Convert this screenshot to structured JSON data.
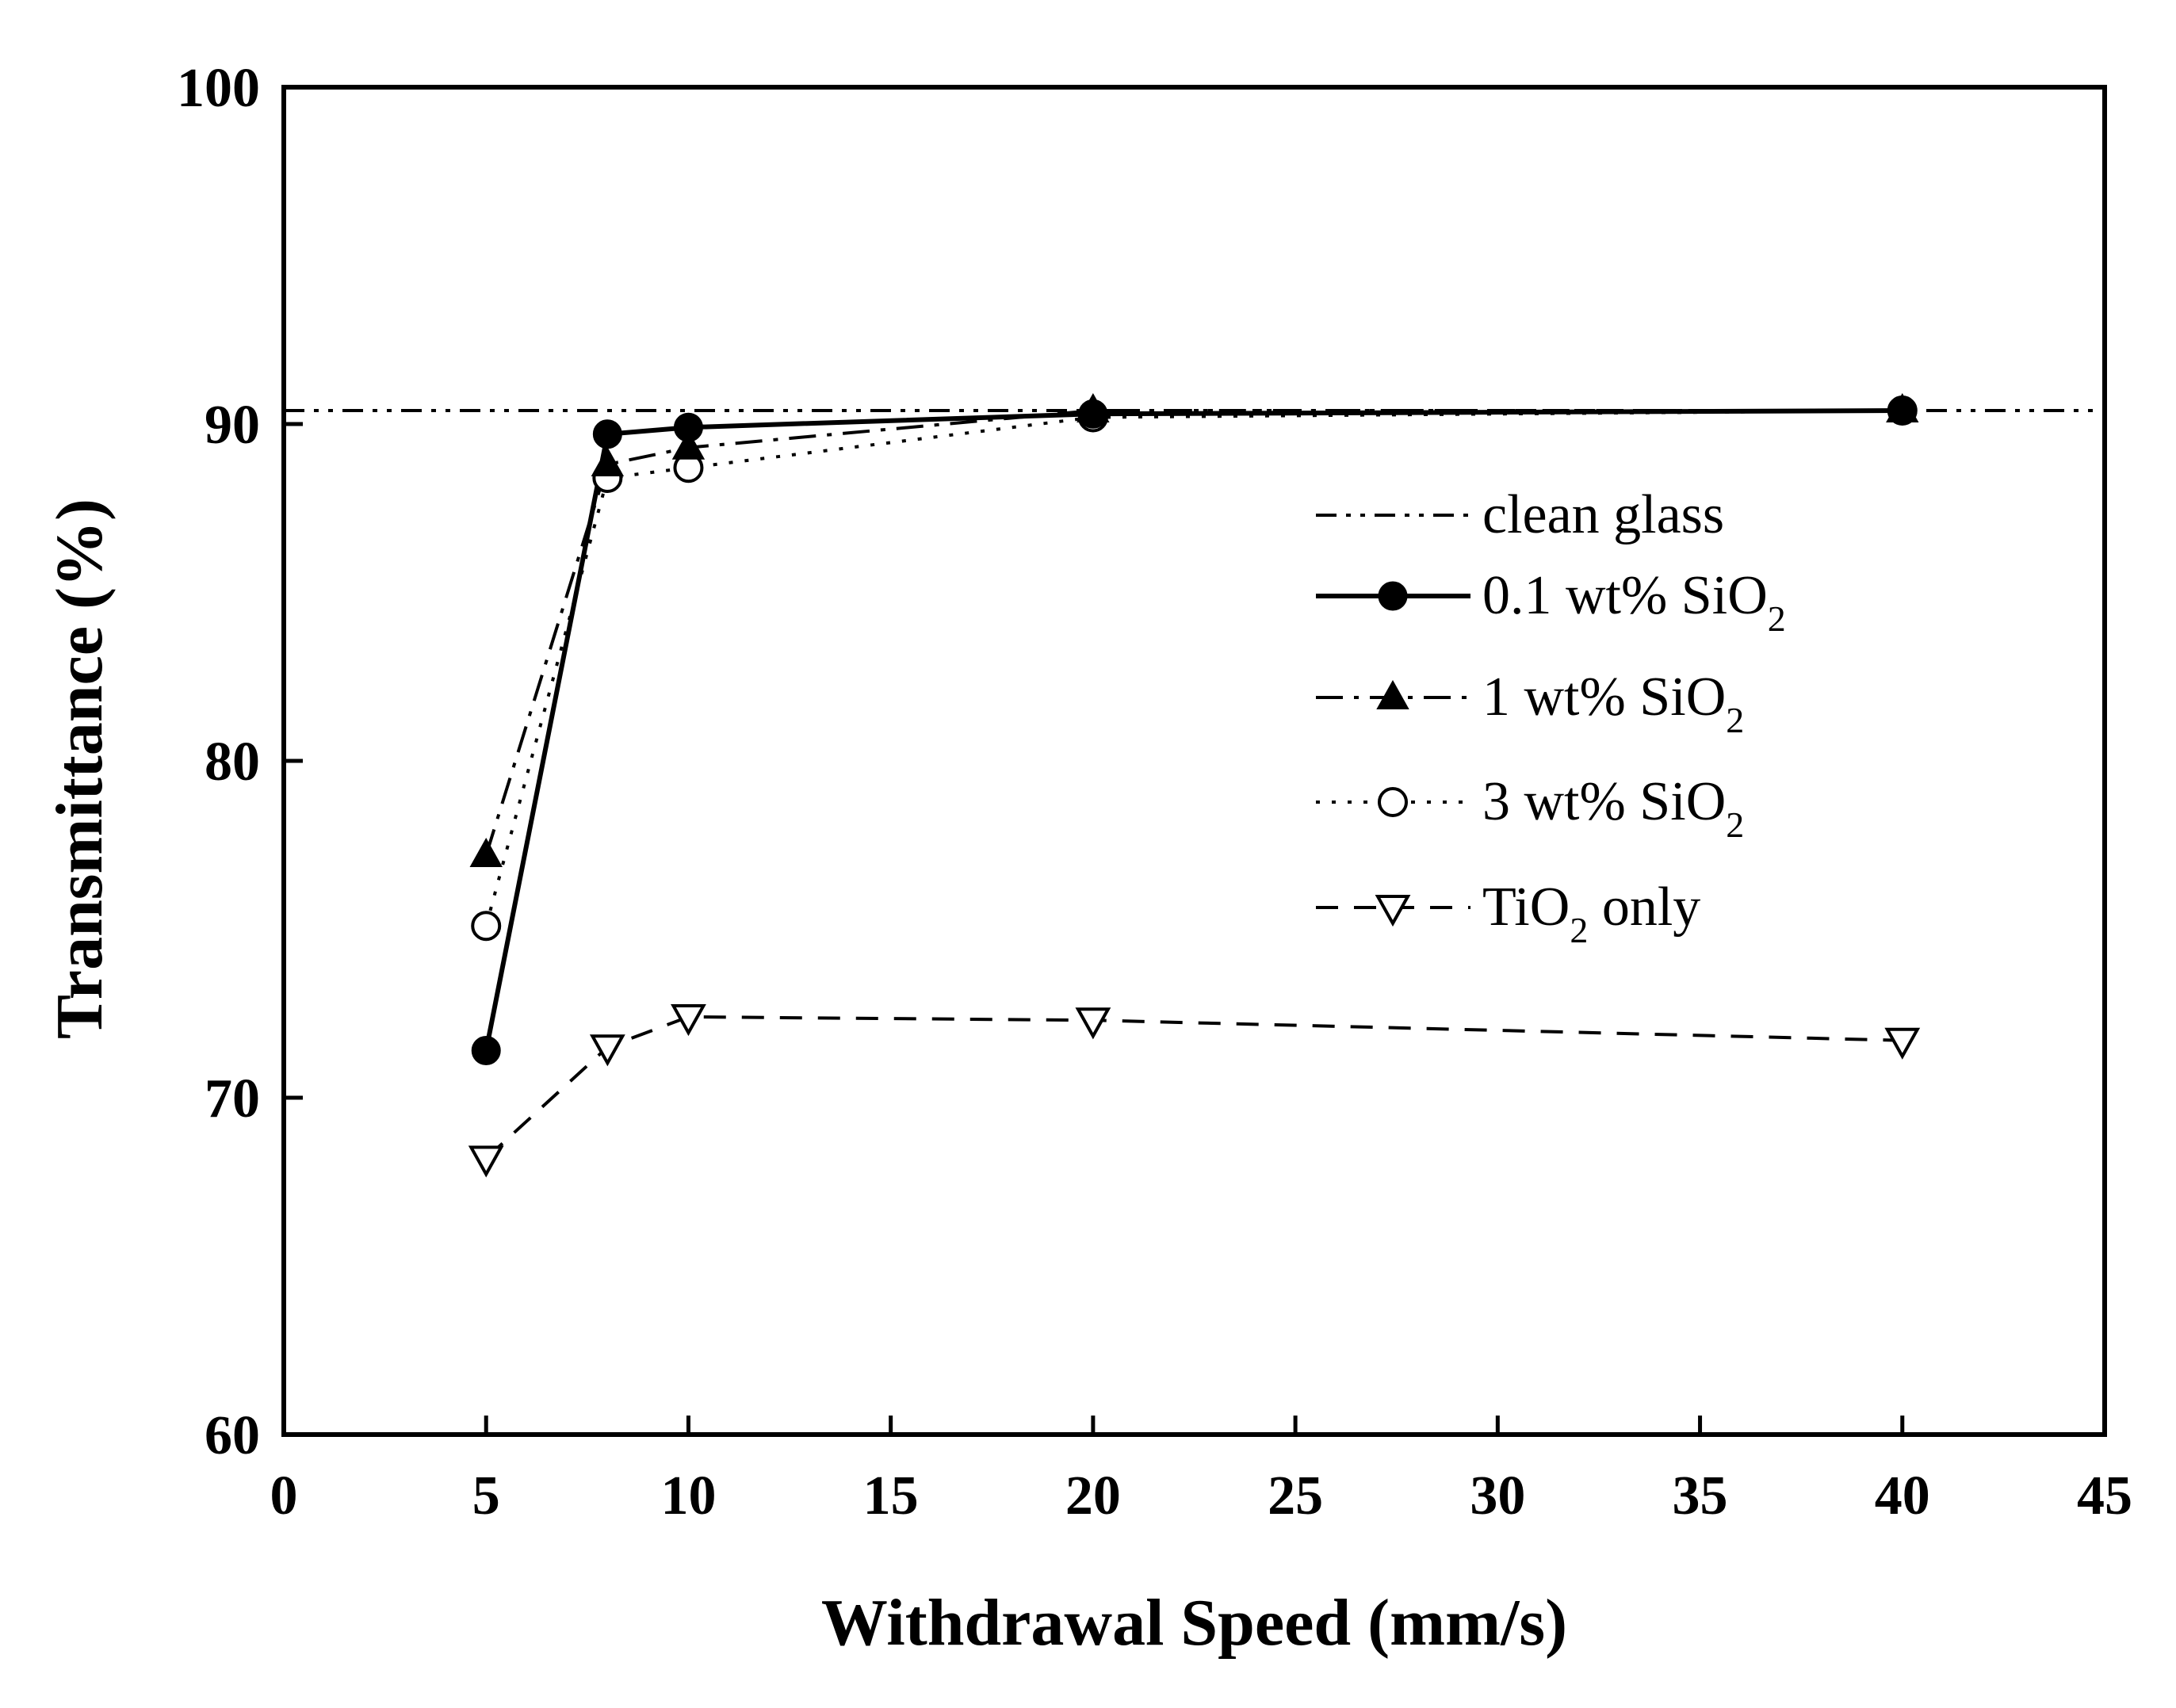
{
  "chart_data": {
    "type": "line",
    "title": "",
    "xlabel": "Withdrawal Speed (mm/s)",
    "ylabel": "Transmittance (%)",
    "xlim": [
      0,
      45
    ],
    "ylim": [
      60,
      100
    ],
    "xticks": [
      0,
      5,
      10,
      15,
      20,
      25,
      30,
      35,
      40,
      45
    ],
    "yticks": [
      60,
      70,
      80,
      90,
      100
    ],
    "xtick_labels": [
      "0",
      "5",
      "10",
      "15",
      "20",
      "25",
      "30",
      "35",
      "40",
      "45"
    ],
    "ytick_labels": [
      "60",
      "70",
      "80",
      "90",
      "100"
    ],
    "grid": false,
    "legend_position": "right",
    "reference_line": {
      "name": "clean glass",
      "y": 90.4,
      "style": "dash-dot-dot"
    },
    "series": [
      {
        "name": "0.1 wt% SiO2",
        "label_main": "0.1 wt% SiO",
        "label_sub": "2",
        "marker": "filled-circle",
        "line": "solid",
        "x": [
          5,
          8,
          10,
          20,
          40
        ],
        "values": [
          71.4,
          89.7,
          89.9,
          90.3,
          90.4
        ]
      },
      {
        "name": "1 wt% SiO2",
        "label_main": "1 wt% SiO",
        "label_sub": "2",
        "marker": "filled-triangle-up",
        "line": "dash-dot",
        "x": [
          5,
          8,
          10,
          20,
          40
        ],
        "values": [
          77.2,
          88.8,
          89.3,
          90.4,
          90.4
        ]
      },
      {
        "name": "3 wt% SiO2",
        "label_main": "3 wt% SiO",
        "label_sub": "2",
        "marker": "open-circle",
        "line": "dotted",
        "x": [
          5,
          8,
          10,
          20,
          40
        ],
        "values": [
          75.1,
          88.4,
          88.7,
          90.2,
          90.4
        ]
      },
      {
        "name": "TiO2 only",
        "label_pre": "TiO",
        "label_sub": "2",
        "label_post": " only",
        "marker": "open-triangle-down",
        "line": "dashed",
        "x": [
          5,
          8,
          10,
          20,
          40
        ],
        "values": [
          68.2,
          71.5,
          72.4,
          72.3,
          71.7
        ]
      }
    ]
  }
}
